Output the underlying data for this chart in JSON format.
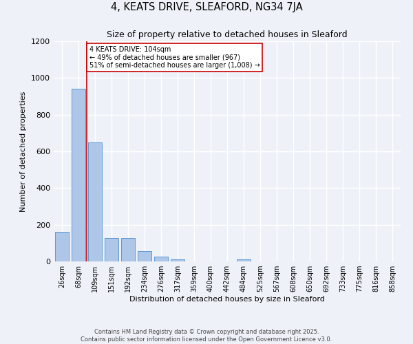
{
  "title": "4, KEATS DRIVE, SLEAFORD, NG34 7JA",
  "subtitle": "Size of property relative to detached houses in Sleaford",
  "xlabel": "Distribution of detached houses by size in Sleaford",
  "ylabel": "Number of detached properties",
  "bin_labels": [
    "26sqm",
    "68sqm",
    "109sqm",
    "151sqm",
    "192sqm",
    "234sqm",
    "276sqm",
    "317sqm",
    "359sqm",
    "400sqm",
    "442sqm",
    "484sqm",
    "525sqm",
    "567sqm",
    "608sqm",
    "650sqm",
    "692sqm",
    "733sqm",
    "775sqm",
    "816sqm",
    "858sqm"
  ],
  "bar_heights": [
    160,
    940,
    650,
    128,
    128,
    55,
    25,
    12,
    0,
    0,
    0,
    12,
    0,
    0,
    0,
    0,
    0,
    0,
    0,
    0,
    0
  ],
  "bar_color": "#aec6e8",
  "bar_edge_color": "#5b9bd5",
  "ylim": [
    0,
    1200
  ],
  "yticks": [
    0,
    200,
    400,
    600,
    800,
    1000,
    1200
  ],
  "property_line_color": "#cc0000",
  "annotation_text": "4 KEATS DRIVE: 104sqm\n← 49% of detached houses are smaller (967)\n51% of semi-detached houses are larger (1,008) →",
  "annotation_box_color": "#ffffff",
  "annotation_box_edge_color": "#cc0000",
  "footer_text": "Contains HM Land Registry data © Crown copyright and database right 2025.\nContains public sector information licensed under the Open Government Licence v3.0.",
  "background_color": "#eef2f8",
  "grid_color": "#ffffff"
}
